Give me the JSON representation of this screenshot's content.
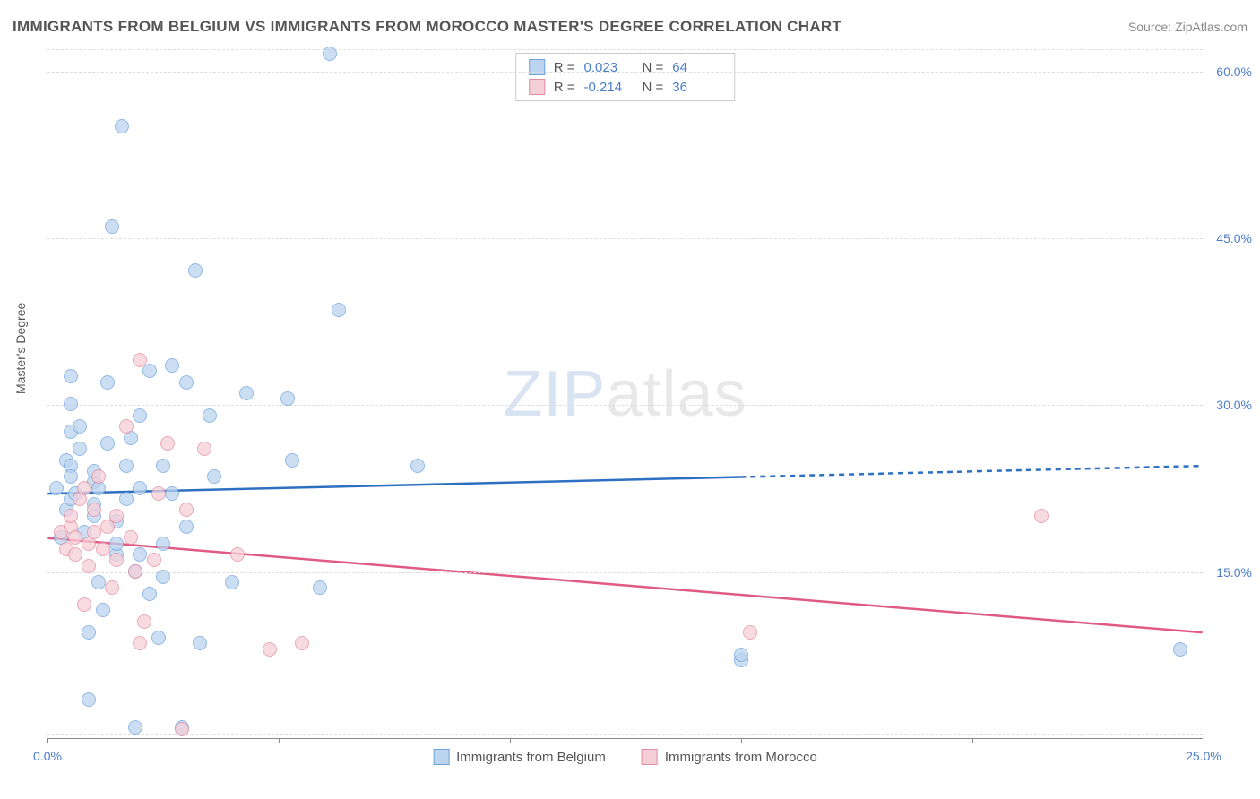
{
  "header": {
    "title": "IMMIGRANTS FROM BELGIUM VS IMMIGRANTS FROM MOROCCO MASTER'S DEGREE CORRELATION CHART",
    "source_prefix": "Source: ",
    "source": "ZipAtlas.com"
  },
  "watermark": {
    "part1": "ZIP",
    "part2": "atlas"
  },
  "chart": {
    "type": "scatter",
    "yaxis_label": "Master's Degree",
    "xlim": [
      0,
      25
    ],
    "ylim": [
      0,
      62
    ],
    "xticks": [
      0,
      5,
      10,
      15,
      20,
      25
    ],
    "xtick_labels": [
      "0.0%",
      "",
      "",
      "",
      "",
      "25.0%"
    ],
    "yticks": [
      15,
      30,
      45,
      60
    ],
    "ytick_labels": [
      "15.0%",
      "30.0%",
      "45.0%",
      "60.0%"
    ],
    "grid_dashed_at": [
      0.5,
      15,
      30,
      45,
      60,
      62
    ],
    "grid_color": "#dddddd",
    "background_color": "#ffffff",
    "colors": {
      "belgium_fill": "#bcd4ee",
      "belgium_stroke": "#6fa3dd",
      "belgium_line": "#2d6fc1",
      "morocco_fill": "#f5cfd8",
      "morocco_stroke": "#e48ca2",
      "morocco_line": "#e05a84",
      "axis_text": "#4a7ec9"
    },
    "marker_radius": 8,
    "marker_opacity": 0.75,
    "line_width": 2.5,
    "series": [
      {
        "name": "Immigrants from Belgium",
        "key": "belgium",
        "R": "0.023",
        "N": "64",
        "trend": {
          "y_at_x0": 22.0,
          "y_at_xmax": 24.5,
          "solid_until_x": 15.0
        },
        "points": [
          [
            0.2,
            22.5
          ],
          [
            0.3,
            18.0
          ],
          [
            0.4,
            20.5
          ],
          [
            0.4,
            25.0
          ],
          [
            0.5,
            30.0
          ],
          [
            0.5,
            32.5
          ],
          [
            0.5,
            27.5
          ],
          [
            0.5,
            24.5
          ],
          [
            0.5,
            21.5
          ],
          [
            0.5,
            23.5
          ],
          [
            0.6,
            22.0
          ],
          [
            0.7,
            28.0
          ],
          [
            0.7,
            26.0
          ],
          [
            0.8,
            18.5
          ],
          [
            0.9,
            3.5
          ],
          [
            0.9,
            9.5
          ],
          [
            1.0,
            23.0
          ],
          [
            1.0,
            24.0
          ],
          [
            1.0,
            20.0
          ],
          [
            1.0,
            21.0
          ],
          [
            1.1,
            14.0
          ],
          [
            1.1,
            22.5
          ],
          [
            1.2,
            11.5
          ],
          [
            1.3,
            26.5
          ],
          [
            1.3,
            32.0
          ],
          [
            1.4,
            46.0
          ],
          [
            1.5,
            16.5
          ],
          [
            1.5,
            17.5
          ],
          [
            1.5,
            19.5
          ],
          [
            1.6,
            55.0
          ],
          [
            1.7,
            24.5
          ],
          [
            1.7,
            21.5
          ],
          [
            1.8,
            27.0
          ],
          [
            1.9,
            1.0
          ],
          [
            1.9,
            15.0
          ],
          [
            2.0,
            29.0
          ],
          [
            2.0,
            22.5
          ],
          [
            2.0,
            16.5
          ],
          [
            2.2,
            33.0
          ],
          [
            2.2,
            13.0
          ],
          [
            2.4,
            9.0
          ],
          [
            2.5,
            24.5
          ],
          [
            2.5,
            17.5
          ],
          [
            2.5,
            14.5
          ],
          [
            2.7,
            33.5
          ],
          [
            2.7,
            22.0
          ],
          [
            2.9,
            1.0
          ],
          [
            3.0,
            19.0
          ],
          [
            3.0,
            32.0
          ],
          [
            3.2,
            42.0
          ],
          [
            3.3,
            8.5
          ],
          [
            3.5,
            29.0
          ],
          [
            3.6,
            23.5
          ],
          [
            4.0,
            14.0
          ],
          [
            4.3,
            31.0
          ],
          [
            5.2,
            30.5
          ],
          [
            5.3,
            25.0
          ],
          [
            5.9,
            13.5
          ],
          [
            6.1,
            61.5
          ],
          [
            6.3,
            38.5
          ],
          [
            8.0,
            24.5
          ],
          [
            15.0,
            7.0
          ],
          [
            15.0,
            7.5
          ],
          [
            24.5,
            8.0
          ]
        ]
      },
      {
        "name": "Immigrants from Morocco",
        "key": "morocco",
        "R": "-0.214",
        "N": "36",
        "trend": {
          "y_at_x0": 18.0,
          "y_at_xmax": 9.5,
          "solid_until_x": 25.0
        },
        "points": [
          [
            0.3,
            18.5
          ],
          [
            0.4,
            17.0
          ],
          [
            0.5,
            19.0
          ],
          [
            0.5,
            20.0
          ],
          [
            0.6,
            16.5
          ],
          [
            0.6,
            18.0
          ],
          [
            0.7,
            21.5
          ],
          [
            0.8,
            22.5
          ],
          [
            0.8,
            12.0
          ],
          [
            0.9,
            15.5
          ],
          [
            0.9,
            17.5
          ],
          [
            1.0,
            20.5
          ],
          [
            1.0,
            18.5
          ],
          [
            1.1,
            23.5
          ],
          [
            1.2,
            17.0
          ],
          [
            1.3,
            19.0
          ],
          [
            1.4,
            13.5
          ],
          [
            1.5,
            20.0
          ],
          [
            1.5,
            16.0
          ],
          [
            1.7,
            28.0
          ],
          [
            1.8,
            18.0
          ],
          [
            1.9,
            15.0
          ],
          [
            2.0,
            34.0
          ],
          [
            2.0,
            8.5
          ],
          [
            2.1,
            10.5
          ],
          [
            2.3,
            16.0
          ],
          [
            2.4,
            22.0
          ],
          [
            2.6,
            26.5
          ],
          [
            2.9,
            0.8
          ],
          [
            3.0,
            20.5
          ],
          [
            3.4,
            26.0
          ],
          [
            4.1,
            16.5
          ],
          [
            4.8,
            8.0
          ],
          [
            5.5,
            8.5
          ],
          [
            15.2,
            9.5
          ],
          [
            21.5,
            20.0
          ]
        ]
      }
    ]
  }
}
